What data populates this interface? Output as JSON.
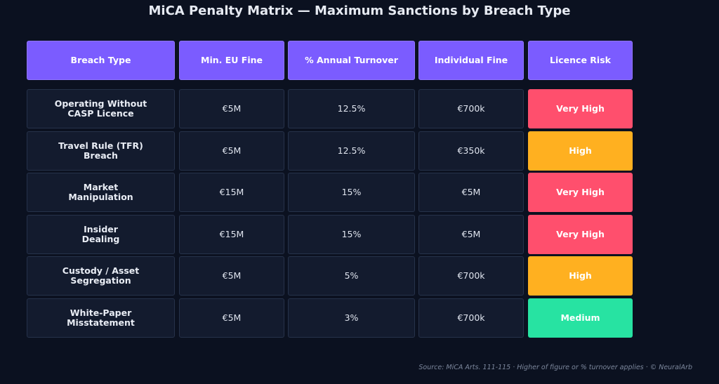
{
  "title": "MiCA Penalty Matrix — Maximum Sanctions by Breach Type",
  "footer": "Source: MiCA Arts. 111-115 · Higher of figure or % turnover applies · © NeuralArb",
  "colors": {
    "background": "#0b1120",
    "header": "#7b5cff",
    "cell": "#131b2e",
    "very_high": "#ff4f6d",
    "high": "#ffb020",
    "medium": "#27e3a2"
  },
  "chart_data": {
    "type": "table",
    "columns": [
      "Breach Type",
      "Min. EU Fine",
      "% Annual Turnover",
      "Individual Fine",
      "Licence Risk"
    ],
    "rows": [
      {
        "breach": [
          "Operating Without",
          "CASP Licence"
        ],
        "min_fine": "€5M",
        "turnover": "12.5%",
        "individual": "€700k",
        "risk": "Very High",
        "risk_level": "very_high"
      },
      {
        "breach": [
          "Travel Rule (TFR)",
          "Breach"
        ],
        "min_fine": "€5M",
        "turnover": "12.5%",
        "individual": "€350k",
        "risk": "High",
        "risk_level": "high"
      },
      {
        "breach": [
          "Market",
          "Manipulation"
        ],
        "min_fine": "€15M",
        "turnover": "15%",
        "individual": "€5M",
        "risk": "Very High",
        "risk_level": "very_high"
      },
      {
        "breach": [
          "Insider",
          "Dealing"
        ],
        "min_fine": "€15M",
        "turnover": "15%",
        "individual": "€5M",
        "risk": "Very High",
        "risk_level": "very_high"
      },
      {
        "breach": [
          "Custody / Asset",
          "Segregation"
        ],
        "min_fine": "€5M",
        "turnover": "5%",
        "individual": "€700k",
        "risk": "High",
        "risk_level": "high"
      },
      {
        "breach": [
          "White-Paper",
          "Misstatement"
        ],
        "min_fine": "€5M",
        "turnover": "3%",
        "individual": "€700k",
        "risk": "Medium",
        "risk_level": "medium"
      }
    ]
  }
}
